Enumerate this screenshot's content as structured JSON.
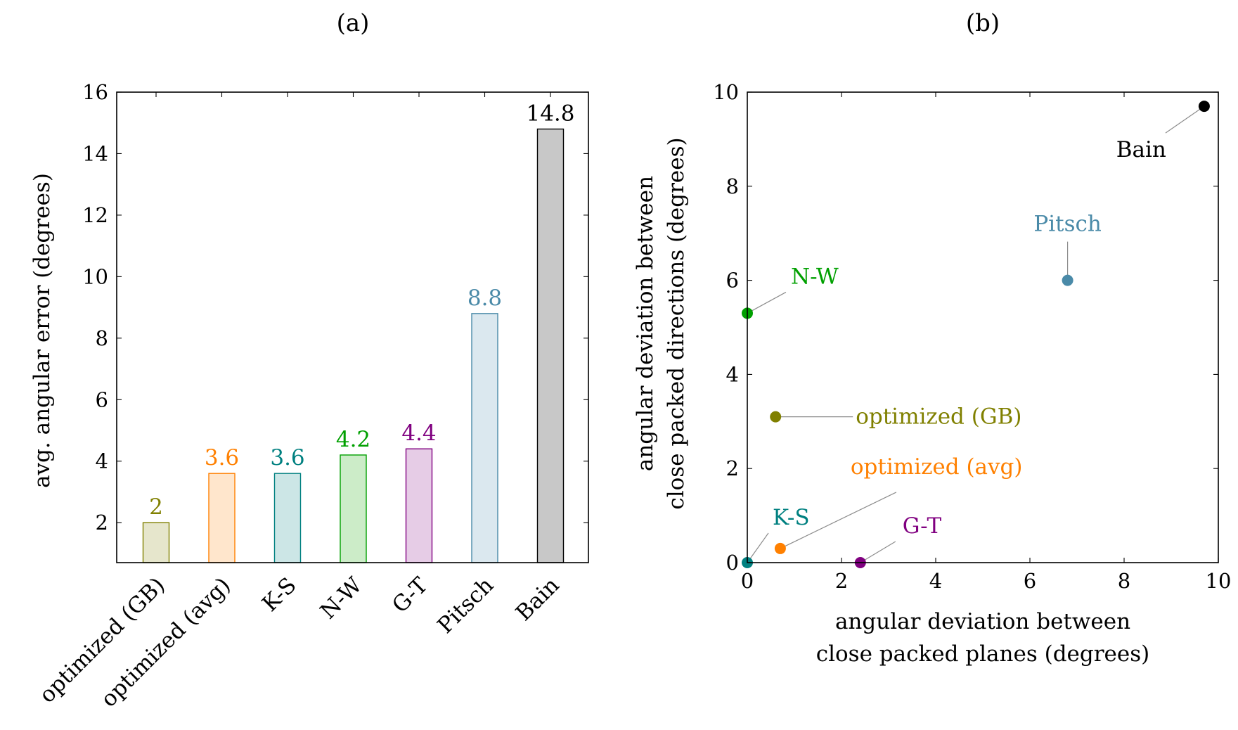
{
  "panels": {
    "a": {
      "title": "(a)"
    },
    "b": {
      "title": "(b)"
    }
  },
  "chart_data": [
    {
      "type": "bar",
      "title": "(a)",
      "xlabel": "",
      "ylabel": "avg. angular error (degrees)",
      "ylim": [
        0.7,
        16
      ],
      "yticks": [
        2,
        4,
        6,
        8,
        10,
        12,
        14,
        16
      ],
      "grid": false,
      "categories": [
        "optimized (GB)",
        "optimized (avg)",
        "K-S",
        "N-W",
        "G-T",
        "Pitsch",
        "Bain"
      ],
      "values": [
        2,
        3.6,
        3.6,
        4.2,
        4.4,
        8.8,
        14.8
      ],
      "value_labels": [
        "2",
        "3.6",
        "3.6",
        "4.2",
        "4.4",
        "8.8",
        "14.8"
      ],
      "colors": [
        "#808000",
        "#ff8000",
        "#008080",
        "#00a000",
        "#800080",
        "#4a8aa8",
        "#000000"
      ],
      "fills": [
        "#e6e6cc",
        "#ffe6cc",
        "#cce6e6",
        "#ccecc8",
        "#e6cce6",
        "#dbe8ef",
        "#c8c8c8"
      ]
    },
    {
      "type": "scatter",
      "title": "(b)",
      "xlabel": [
        "angular deviation between",
        "close packed planes (degrees)"
      ],
      "ylabel": [
        "angular deviation between",
        "close packed directions (degrees)"
      ],
      "xlim": [
        0,
        10
      ],
      "ylim": [
        0,
        10
      ],
      "xticks": [
        0,
        2,
        4,
        6,
        8,
        10
      ],
      "yticks": [
        0,
        2,
        4,
        6,
        8,
        10
      ],
      "grid": false,
      "points": [
        {
          "label": "optimized (GB)",
          "x": 0.6,
          "y": 3.1,
          "color": "#808000"
        },
        {
          "label": "optimized (avg)",
          "x": 0.7,
          "y": 0.3,
          "color": "#ff8000"
        },
        {
          "label": "K-S",
          "x": 0.0,
          "y": 0.0,
          "color": "#008080"
        },
        {
          "label": "N-W",
          "x": 0.0,
          "y": 5.3,
          "color": "#00a000"
        },
        {
          "label": "G-T",
          "x": 2.4,
          "y": 0.0,
          "color": "#800080"
        },
        {
          "label": "Pitsch",
          "x": 6.8,
          "y": 6.0,
          "color": "#4a8aa8"
        },
        {
          "label": "Bain",
          "x": 9.7,
          "y": 9.7,
          "color": "#000000"
        }
      ]
    }
  ]
}
